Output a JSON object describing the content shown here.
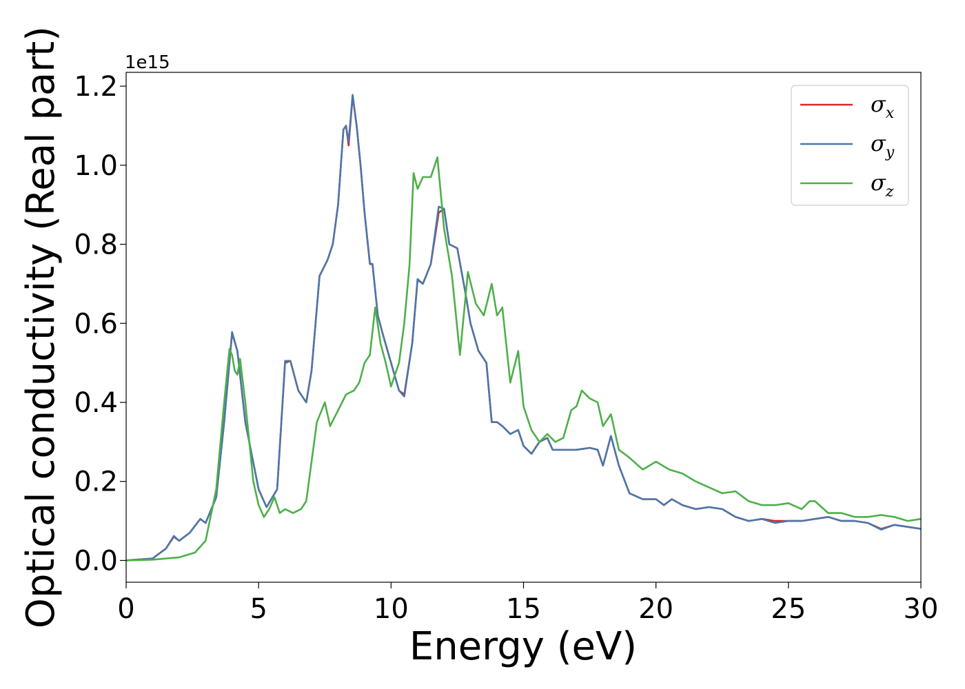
{
  "chart_data": {
    "type": "line",
    "xlabel": "Energy (eV)",
    "ylabel": "Optical conductivity (Real part)",
    "y_offset_label": "1e15",
    "xlim": [
      0,
      30
    ],
    "ylim": [
      -0.055,
      1.235
    ],
    "x_ticks": [
      0,
      5,
      10,
      15,
      20,
      25,
      30
    ],
    "x_tick_labels": [
      "0",
      "5",
      "10",
      "15",
      "20",
      "25",
      "30"
    ],
    "y_ticks": [
      0.0,
      0.2,
      0.4,
      0.6,
      0.8,
      1.0,
      1.2
    ],
    "y_tick_labels": [
      "0.0",
      "0.2",
      "0.4",
      "0.6",
      "0.8",
      "1.0",
      "1.2"
    ],
    "grid": false,
    "legend_position": "top-right",
    "series": [
      {
        "name": "σx",
        "symbol": "σ",
        "subscript": "x",
        "color": "#d62728",
        "x": [
          0,
          1,
          1.5,
          1.8,
          2,
          2.4,
          2.8,
          3,
          3.4,
          3.7,
          4,
          4.2,
          4.5,
          5,
          5.3,
          5.7,
          6,
          6.2,
          6.5,
          6.8,
          7,
          7.3,
          7.6,
          7.8,
          8,
          8.2,
          8.3,
          8.4,
          8.55,
          8.7,
          8.85,
          9,
          9.2,
          9.3,
          9.5,
          9.7,
          10,
          10.3,
          10.5,
          10.8,
          11,
          11.2,
          11.5,
          11.8,
          12,
          12.2,
          12.5,
          12.8,
          13,
          13.3,
          13.6,
          13.8,
          14,
          14.2,
          14.5,
          14.8,
          15,
          15.3,
          15.6,
          15.9,
          16.1,
          16.5,
          17,
          17.5,
          17.8,
          18,
          18.3,
          18.6,
          19,
          19.5,
          20,
          20.3,
          20.6,
          21,
          21.5,
          22,
          22.5,
          23,
          23.5,
          24,
          24.5,
          25,
          25.5,
          26,
          26.5,
          27,
          27.5,
          28,
          28.5,
          29,
          29.5,
          30
        ],
        "y": [
          0,
          0.005,
          0.03,
          0.06,
          0.05,
          0.07,
          0.105,
          0.095,
          0.16,
          0.35,
          0.575,
          0.53,
          0.35,
          0.18,
          0.135,
          0.18,
          0.5,
          0.505,
          0.43,
          0.4,
          0.48,
          0.72,
          0.76,
          0.8,
          0.9,
          1.09,
          1.1,
          1.05,
          1.175,
          1.1,
          1.0,
          0.88,
          0.75,
          0.75,
          0.62,
          0.57,
          0.5,
          0.43,
          0.42,
          0.55,
          0.71,
          0.7,
          0.75,
          0.88,
          0.89,
          0.8,
          0.79,
          0.68,
          0.6,
          0.53,
          0.5,
          0.35,
          0.35,
          0.34,
          0.32,
          0.33,
          0.29,
          0.27,
          0.3,
          0.31,
          0.28,
          0.28,
          0.28,
          0.285,
          0.28,
          0.24,
          0.315,
          0.24,
          0.17,
          0.155,
          0.155,
          0.14,
          0.155,
          0.14,
          0.13,
          0.135,
          0.13,
          0.11,
          0.1,
          0.105,
          0.1,
          0.1,
          0.1,
          0.105,
          0.11,
          0.1,
          0.1,
          0.095,
          0.08,
          0.09,
          0.085,
          0.08
        ]
      },
      {
        "name": "σy",
        "symbol": "σ",
        "subscript": "y",
        "color": "#4a78aa",
        "x": [
          0,
          1,
          1.5,
          1.8,
          2,
          2.4,
          2.8,
          3,
          3.4,
          3.7,
          4,
          4.2,
          4.5,
          5,
          5.3,
          5.7,
          6,
          6.2,
          6.5,
          6.8,
          7,
          7.3,
          7.6,
          7.8,
          8,
          8.2,
          8.3,
          8.4,
          8.55,
          8.7,
          8.85,
          9,
          9.2,
          9.3,
          9.5,
          9.7,
          10,
          10.3,
          10.5,
          10.8,
          11,
          11.2,
          11.5,
          11.8,
          12,
          12.2,
          12.5,
          12.8,
          13,
          13.3,
          13.6,
          13.8,
          14,
          14.2,
          14.5,
          14.8,
          15,
          15.3,
          15.6,
          15.9,
          16.1,
          16.5,
          17,
          17.5,
          17.8,
          18,
          18.3,
          18.6,
          19,
          19.5,
          20,
          20.3,
          20.6,
          21,
          21.5,
          22,
          22.5,
          23,
          23.5,
          24,
          24.5,
          25,
          25.5,
          26,
          26.5,
          27,
          27.5,
          28,
          28.5,
          29,
          29.5,
          30
        ],
        "y": [
          0,
          0.005,
          0.03,
          0.062,
          0.05,
          0.07,
          0.105,
          0.095,
          0.16,
          0.35,
          0.578,
          0.53,
          0.35,
          0.18,
          0.135,
          0.18,
          0.505,
          0.505,
          0.43,
          0.4,
          0.48,
          0.72,
          0.76,
          0.8,
          0.9,
          1.09,
          1.1,
          1.06,
          1.178,
          1.1,
          1.0,
          0.88,
          0.752,
          0.75,
          0.62,
          0.57,
          0.5,
          0.43,
          0.415,
          0.55,
          0.712,
          0.7,
          0.75,
          0.895,
          0.89,
          0.8,
          0.79,
          0.68,
          0.6,
          0.53,
          0.5,
          0.35,
          0.35,
          0.34,
          0.32,
          0.33,
          0.29,
          0.27,
          0.3,
          0.31,
          0.28,
          0.28,
          0.28,
          0.285,
          0.28,
          0.24,
          0.315,
          0.24,
          0.17,
          0.155,
          0.155,
          0.14,
          0.155,
          0.14,
          0.13,
          0.135,
          0.13,
          0.11,
          0.1,
          0.105,
          0.095,
          0.1,
          0.1,
          0.105,
          0.11,
          0.1,
          0.1,
          0.095,
          0.078,
          0.09,
          0.085,
          0.08
        ]
      },
      {
        "name": "σz",
        "symbol": "σ",
        "subscript": "z",
        "color": "#4daf4a",
        "x": [
          0,
          1,
          2,
          2.6,
          3,
          3.4,
          3.7,
          3.9,
          4,
          4.1,
          4.2,
          4.3,
          4.5,
          4.8,
          5,
          5.2,
          5.4,
          5.6,
          5.8,
          6,
          6.3,
          6.6,
          6.8,
          7,
          7.2,
          7.5,
          7.7,
          8,
          8.3,
          8.6,
          8.8,
          9,
          9.2,
          9.4,
          9.6,
          9.8,
          10,
          10.3,
          10.5,
          10.7,
          10.85,
          11,
          11.2,
          11.5,
          11.75,
          12,
          12.3,
          12.6,
          12.9,
          13.2,
          13.5,
          13.8,
          14,
          14.2,
          14.5,
          14.8,
          15,
          15.3,
          15.6,
          15.9,
          16.2,
          16.5,
          16.8,
          17,
          17.2,
          17.5,
          17.8,
          18,
          18.3,
          18.6,
          19,
          19.5,
          20,
          20.5,
          21,
          21.5,
          22,
          22.5,
          23,
          23.5,
          24,
          24.5,
          25,
          25.5,
          25.8,
          26,
          26.5,
          27,
          27.5,
          28,
          28.5,
          29,
          29.5,
          30
        ],
        "y": [
          0,
          0.002,
          0.008,
          0.02,
          0.05,
          0.18,
          0.4,
          0.535,
          0.52,
          0.48,
          0.47,
          0.51,
          0.4,
          0.2,
          0.14,
          0.11,
          0.13,
          0.16,
          0.12,
          0.13,
          0.12,
          0.13,
          0.15,
          0.25,
          0.35,
          0.4,
          0.34,
          0.38,
          0.42,
          0.43,
          0.45,
          0.5,
          0.52,
          0.64,
          0.55,
          0.5,
          0.44,
          0.5,
          0.6,
          0.75,
          0.98,
          0.94,
          0.97,
          0.97,
          1.02,
          0.84,
          0.72,
          0.52,
          0.73,
          0.65,
          0.62,
          0.7,
          0.62,
          0.64,
          0.45,
          0.53,
          0.39,
          0.33,
          0.3,
          0.32,
          0.3,
          0.31,
          0.38,
          0.39,
          0.43,
          0.41,
          0.4,
          0.34,
          0.37,
          0.28,
          0.26,
          0.23,
          0.25,
          0.23,
          0.22,
          0.2,
          0.185,
          0.17,
          0.175,
          0.15,
          0.14,
          0.14,
          0.145,
          0.13,
          0.15,
          0.15,
          0.12,
          0.12,
          0.11,
          0.11,
          0.115,
          0.11,
          0.1,
          0.105
        ]
      }
    ]
  }
}
